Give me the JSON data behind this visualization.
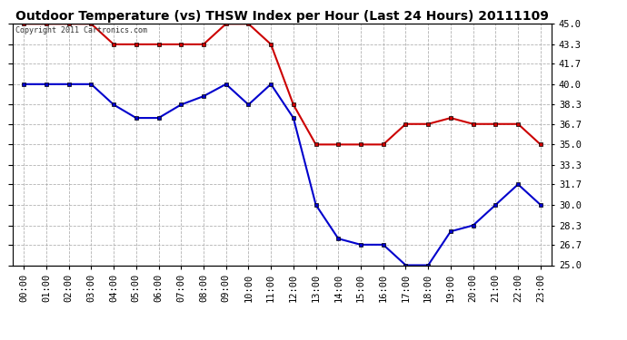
{
  "title": "Outdoor Temperature (vs) THSW Index per Hour (Last 24 Hours) 20111109",
  "copyright_text": "Copyright 2011 Cartronics.com",
  "x_labels": [
    "00:00",
    "01:00",
    "02:00",
    "03:00",
    "04:00",
    "05:00",
    "06:00",
    "07:00",
    "08:00",
    "09:00",
    "10:00",
    "11:00",
    "12:00",
    "13:00",
    "14:00",
    "15:00",
    "16:00",
    "17:00",
    "18:00",
    "19:00",
    "20:00",
    "21:00",
    "22:00",
    "23:00"
  ],
  "thsw_data": [
    45.0,
    45.0,
    45.0,
    45.0,
    43.3,
    43.3,
    43.3,
    43.3,
    43.3,
    45.0,
    45.0,
    43.3,
    38.3,
    35.0,
    35.0,
    35.0,
    35.0,
    36.7,
    36.7,
    37.2,
    36.7,
    36.7,
    36.7,
    35.0
  ],
  "temp_data": [
    40.0,
    40.0,
    40.0,
    40.0,
    38.3,
    37.2,
    37.2,
    38.3,
    39.0,
    40.0,
    38.3,
    40.0,
    37.2,
    30.0,
    27.2,
    26.7,
    26.7,
    25.0,
    25.0,
    27.8,
    28.3,
    30.0,
    31.7,
    30.0
  ],
  "thsw_color": "#cc0000",
  "temp_color": "#0000cc",
  "y_min": 25.0,
  "y_max": 45.0,
  "y_ticks": [
    25.0,
    26.7,
    28.3,
    30.0,
    31.7,
    33.3,
    35.0,
    36.7,
    38.3,
    40.0,
    41.7,
    43.3,
    45.0
  ],
  "background_color": "#ffffff",
  "plot_bg_color": "#ffffff",
  "grid_color": "#aaaaaa",
  "title_fontsize": 10,
  "tick_fontsize": 7.5,
  "marker": "s",
  "marker_size": 3,
  "line_width": 1.5
}
